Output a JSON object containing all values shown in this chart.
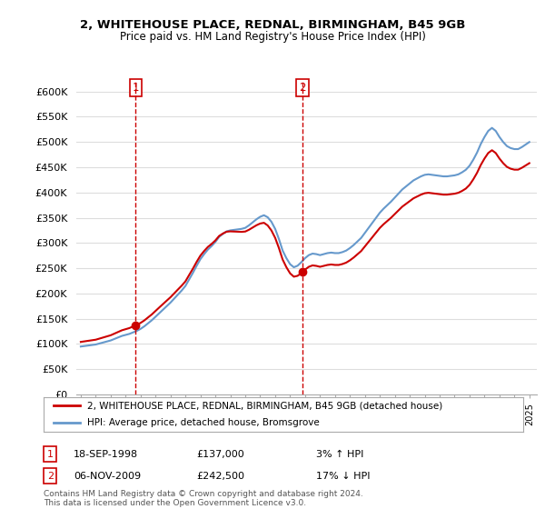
{
  "title_line1": "2, WHITEHOUSE PLACE, REDNAL, BIRMINGHAM, B45 9GB",
  "title_line2": "Price paid vs. HM Land Registry's House Price Index (HPI)",
  "ylabel_ticks": [
    "£0",
    "£50K",
    "£100K",
    "£150K",
    "£200K",
    "£250K",
    "£300K",
    "£350K",
    "£400K",
    "£450K",
    "£500K",
    "£550K",
    "£600K"
  ],
  "ytick_values": [
    0,
    50000,
    100000,
    150000,
    200000,
    250000,
    300000,
    350000,
    400000,
    450000,
    500000,
    550000,
    600000
  ],
  "ylim": [
    0,
    620000
  ],
  "sale1_price": 137000,
  "sale1_date": "18-SEP-1998",
  "sale1_year": 1998,
  "sale1_month": 9,
  "sale1_pct": "3%",
  "sale1_dir": "↑",
  "sale2_price": 242500,
  "sale2_date": "06-NOV-2009",
  "sale2_year": 2009,
  "sale2_month": 11,
  "sale2_pct": "17%",
  "sale2_dir": "↓",
  "line1_color": "#cc0000",
  "line2_color": "#6699cc",
  "vline_color": "#cc0000",
  "dot_color": "#cc0000",
  "legend_line1": "2, WHITEHOUSE PLACE, REDNAL, BIRMINGHAM, B45 9GB (detached house)",
  "legend_line2": "HPI: Average price, detached house, Bromsgrove",
  "footer": "Contains HM Land Registry data © Crown copyright and database right 2024.\nThis data is licensed under the Open Government Licence v3.0.",
  "background_color": "#ffffff",
  "grid_color": "#dddddd"
}
